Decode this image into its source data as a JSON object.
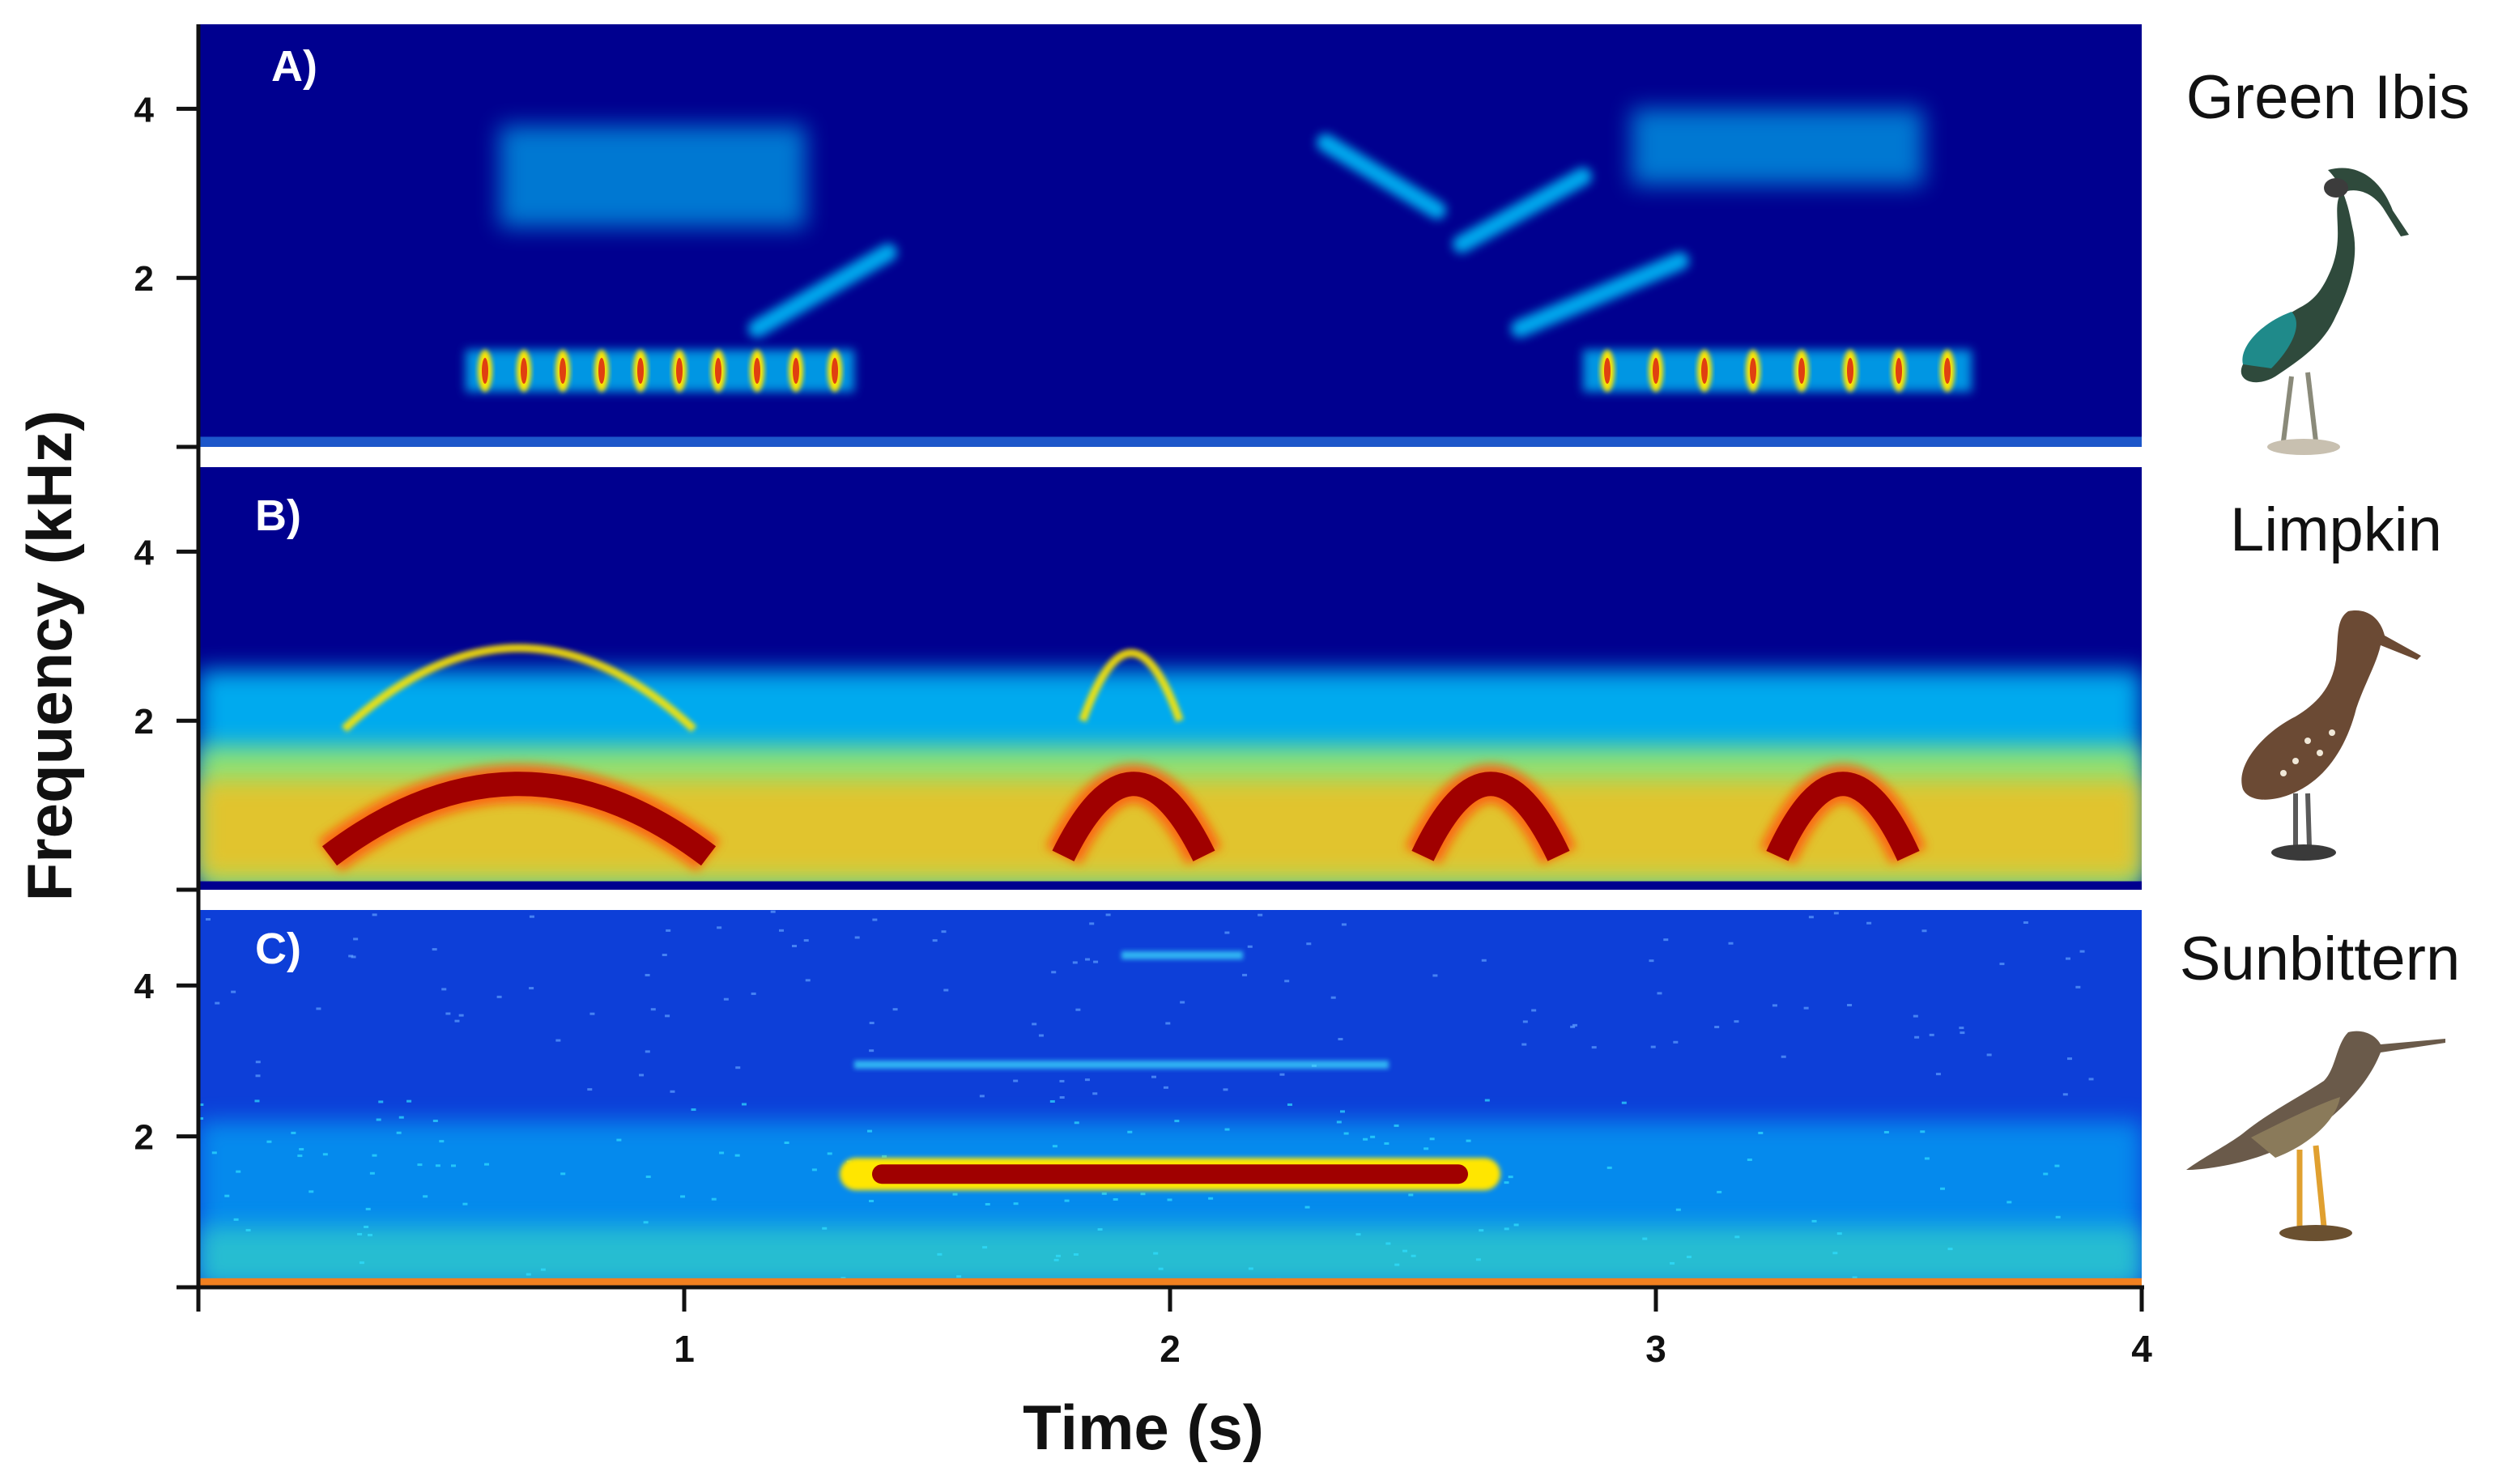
{
  "chart_data": [
    {
      "type": "heatmap",
      "panel_label": "A)",
      "species": "Green Ibis",
      "ylim": [
        0,
        5
      ],
      "xlim": [
        0,
        4
      ],
      "yticks": [
        "2",
        "4"
      ],
      "noise": "low",
      "calls": [
        {
          "shape": "pulse_train",
          "t_start": 0.55,
          "t_end": 1.35,
          "freq_center": 0.9,
          "pulses": 10
        },
        {
          "shape": "band",
          "t_start": 0.62,
          "t_end": 1.25,
          "freq_low": 2.6,
          "freq_high": 3.8
        },
        {
          "shape": "sweep",
          "t_start": 1.15,
          "t_end": 1.42,
          "freq_start": 1.4,
          "freq_end": 2.3
        },
        {
          "shape": "sweep",
          "t_start": 2.32,
          "t_end": 2.55,
          "freq_start": 3.6,
          "freq_end": 2.8
        },
        {
          "shape": "sweep",
          "t_start": 2.6,
          "t_end": 2.85,
          "freq_start": 2.4,
          "freq_end": 3.2
        },
        {
          "shape": "sweep",
          "t_start": 2.72,
          "t_end": 3.05,
          "freq_start": 1.4,
          "freq_end": 2.2
        },
        {
          "shape": "band",
          "t_start": 2.95,
          "t_end": 3.55,
          "freq_low": 3.1,
          "freq_high": 4.0
        },
        {
          "shape": "pulse_train",
          "t_start": 2.85,
          "t_end": 3.65,
          "freq_center": 0.9,
          "pulses": 8
        }
      ]
    },
    {
      "type": "heatmap",
      "panel_label": "B)",
      "species": "Limpkin",
      "ylim": [
        0,
        5
      ],
      "xlim": [
        0,
        4
      ],
      "yticks": [
        "2",
        "4"
      ],
      "noise": "high",
      "calls": [
        {
          "shape": "arch",
          "t_start": 0.27,
          "t_end": 1.05,
          "freq_low": 0.4,
          "freq_high": 1.5
        },
        {
          "shape": "harmonic_arch",
          "t_start": 0.3,
          "t_end": 1.02,
          "freq_low": 1.9,
          "freq_high": 3.1
        },
        {
          "shape": "arch",
          "t_start": 1.78,
          "t_end": 2.07,
          "freq_low": 0.4,
          "freq_high": 1.5
        },
        {
          "shape": "harmonic_arch",
          "t_start": 1.82,
          "t_end": 2.02,
          "freq_low": 2.0,
          "freq_high": 3.0
        },
        {
          "shape": "arch",
          "t_start": 2.52,
          "t_end": 2.8,
          "freq_low": 0.4,
          "freq_high": 1.5
        },
        {
          "shape": "arch",
          "t_start": 3.25,
          "t_end": 3.52,
          "freq_low": 0.4,
          "freq_high": 1.5
        }
      ]
    },
    {
      "type": "heatmap",
      "panel_label": "C)",
      "species": "Sunbittern",
      "ylim": [
        0,
        5
      ],
      "xlim": [
        0,
        4
      ],
      "yticks": [
        "2",
        "4"
      ],
      "noise": "medium",
      "calls": [
        {
          "shape": "tone",
          "t_start": 1.32,
          "t_end": 2.68,
          "freq_center": 1.5
        },
        {
          "shape": "faint_tone",
          "t_start": 1.35,
          "t_end": 2.45,
          "freq_center": 2.95
        },
        {
          "shape": "faint_tone",
          "t_start": 1.9,
          "t_end": 2.15,
          "freq_center": 4.4
        }
      ]
    }
  ],
  "axes": {
    "xlabel": "Time (s)",
    "ylabel": "Frequency (kHz)",
    "xticks": [
      "1",
      "2",
      "3",
      "4"
    ]
  },
  "colors": {
    "background_low": "#00008f",
    "mid": "#00c8ff",
    "high": "#ffe600",
    "peak": "#a00000"
  },
  "icons": [
    "green-ibis-image",
    "limpkin-image",
    "sunbittern-image"
  ]
}
